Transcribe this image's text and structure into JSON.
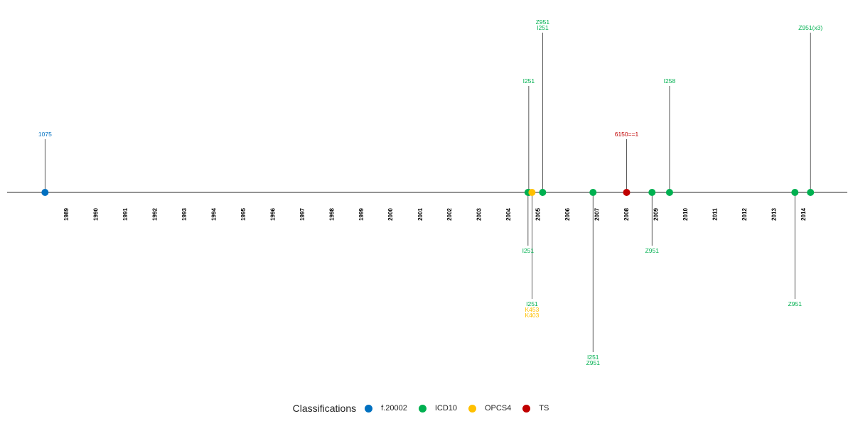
{
  "chart_data": {
    "type": "timeline",
    "x_range": [
      "1988-01-01",
      "2015-06-30"
    ],
    "year_ticks": [
      "1989",
      "1990",
      "1991",
      "1992",
      "1993",
      "1994",
      "1995",
      "1996",
      "1997",
      "1998",
      "1999",
      "2000",
      "2001",
      "2002",
      "2003",
      "2004",
      "2005",
      "2006",
      "2007",
      "2008",
      "2009",
      "2010",
      "2011",
      "2012",
      "2013",
      "2014"
    ],
    "legend": {
      "title": "Classifications",
      "position": "bottom",
      "entries": [
        {
          "label": "f.20002",
          "color": "#0070C0"
        },
        {
          "label": "ICD10",
          "color": "#00B050"
        },
        {
          "label": "OPCS4",
          "color": "#FFC000"
        },
        {
          "label": "TS",
          "color": "#C00000"
        }
      ]
    },
    "events": [
      {
        "date": "1988-04-15",
        "class": "f.20002",
        "level": 1,
        "labels": [
          {
            "text": "1075",
            "class": "f.20002"
          }
        ]
      },
      {
        "date": "2004-09-10",
        "class": "ICD10",
        "level": 2,
        "labels": [
          {
            "text": "I251",
            "class": "ICD10"
          }
        ]
      },
      {
        "date": "2004-09-01",
        "class": "ICD10",
        "level": -1,
        "labels": [
          {
            "text": "I251",
            "class": "ICD10"
          }
        ]
      },
      {
        "date": "2004-10-20",
        "class": "OPCS4",
        "level": -2,
        "labels": [
          {
            "text": "I251",
            "class": "ICD10"
          },
          {
            "text": "K453",
            "class": "OPCS4"
          },
          {
            "text": "K403",
            "class": "OPCS4"
          }
        ]
      },
      {
        "date": "2005-03-01",
        "class": "ICD10",
        "level": 3,
        "labels": [
          {
            "text": "Z951",
            "class": "ICD10"
          },
          {
            "text": "I251",
            "class": "ICD10"
          }
        ]
      },
      {
        "date": "2006-11-15",
        "class": "ICD10",
        "level": -3,
        "labels": [
          {
            "text": "I251",
            "class": "ICD10"
          },
          {
            "text": "Z951",
            "class": "ICD10"
          }
        ]
      },
      {
        "date": "2008-01-05",
        "class": "TS",
        "level": 1,
        "labels": [
          {
            "text": "6150==1",
            "class": "TS"
          }
        ]
      },
      {
        "date": "2008-11-15",
        "class": "ICD10",
        "level": -1,
        "labels": [
          {
            "text": "Z951",
            "class": "ICD10"
          }
        ]
      },
      {
        "date": "2009-06-20",
        "class": "ICD10",
        "level": 2,
        "labels": [
          {
            "text": "I258",
            "class": "ICD10"
          }
        ]
      },
      {
        "date": "2013-09-20",
        "class": "ICD10",
        "level": -2,
        "labels": [
          {
            "text": "Z951",
            "class": "ICD10"
          }
        ]
      },
      {
        "date": "2014-04-01",
        "class": "ICD10",
        "level": 3,
        "labels": [
          {
            "text": "Z951(x3)",
            "class": "ICD10"
          }
        ]
      }
    ]
  }
}
